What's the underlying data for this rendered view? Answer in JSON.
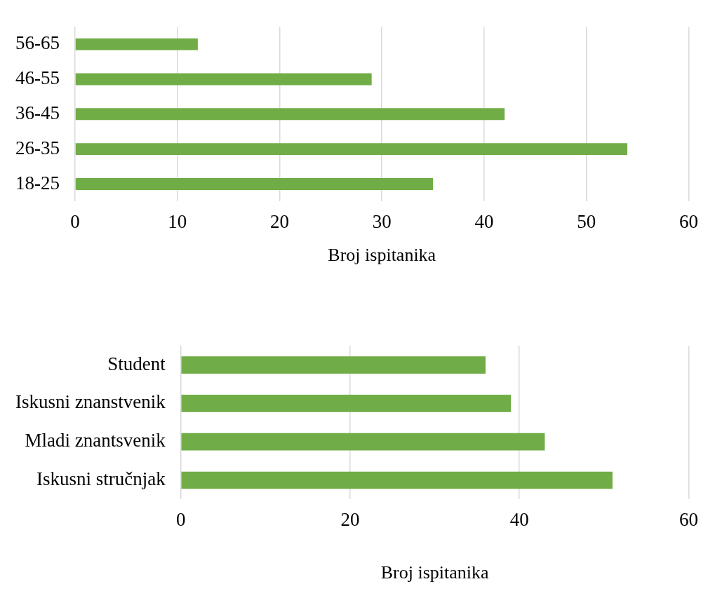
{
  "chart_data": [
    {
      "type": "bar",
      "orientation": "horizontal",
      "categories": [
        "56-65",
        "46-55",
        "36-45",
        "26-35",
        "18-25"
      ],
      "values": [
        12,
        29,
        42,
        54,
        35
      ],
      "color": "#70ad47",
      "xlabel": "Broj ispitanika",
      "xlim": [
        0,
        60
      ],
      "xticks": [
        0,
        10,
        20,
        30,
        40,
        50,
        60
      ],
      "grid": "x",
      "legend": false
    },
    {
      "type": "bar",
      "orientation": "horizontal",
      "categories": [
        "Student",
        "Iskusni znanstvenik",
        "Mladi znantsvenik",
        "Iskusni stručnjak"
      ],
      "values": [
        36,
        39,
        43,
        51
      ],
      "color": "#70ad47",
      "xlabel": "Broj ispitanika",
      "xlim": [
        0,
        60
      ],
      "xticks": [
        0,
        20,
        40,
        60
      ],
      "grid": "x",
      "legend": false
    }
  ]
}
